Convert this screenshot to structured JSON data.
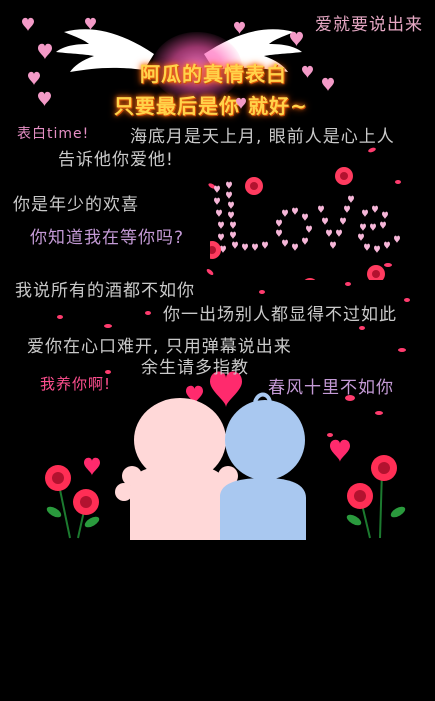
{
  "screen": {
    "top_right": "爱就要说出来",
    "banner": {
      "line1": "阿瓜的真情表白",
      "line2": "只要最后是你  就好~"
    },
    "danmaku": {
      "biaobai": "表白time!",
      "haidi": "海底月是天上月, 眼前人是心上人",
      "gaosu": "告诉他你爱他!",
      "nianshao": "你是年少的欢喜",
      "nizhidao": "你知道我在等你吗?",
      "jiu": "我说所有的酒都不如你",
      "niyi": "你一出场别人都显得不过如此",
      "aini": "爱你在心口难开, 只用弹幕说出来",
      "yusheng": "余生请多指教",
      "woyang": "我养你啊!",
      "chunfeng": "春风十里不如你"
    },
    "love_word": "Love"
  },
  "colors": {
    "background": "#000000",
    "text_gray": "#c9c9c9",
    "text_violet": "#c49ad6",
    "text_pink": "#e58fc4",
    "banner_gold": "#ffd34a",
    "heart_red": "#ff2a6d",
    "girl_skin": "#ffd8d8",
    "boy_blue": "#a9c8f0"
  },
  "icons": {
    "hearts": "heart-icon",
    "wings": "wing-icon",
    "roses": "rose-icon"
  }
}
